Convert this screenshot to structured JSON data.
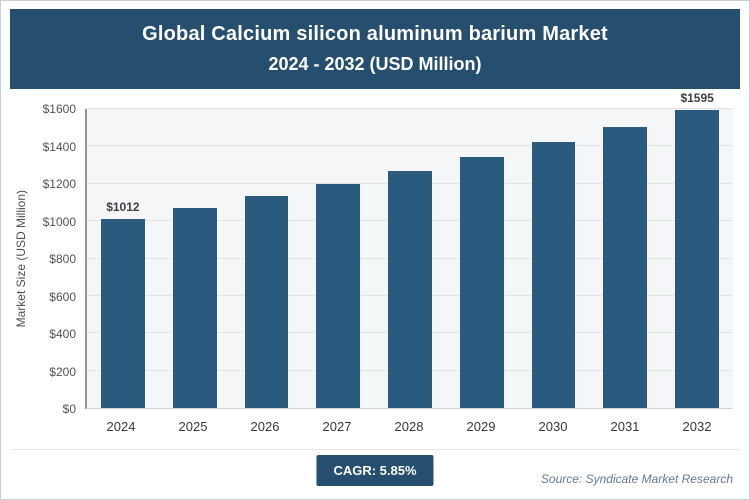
{
  "header": {
    "title_line1": "Global Calcium silicon aluminum barium Market",
    "title_line2": "2024 - 2032 (USD Million)"
  },
  "chart_data": {
    "type": "bar",
    "title": "Global Calcium silicon aluminum barium Market 2024 - 2032 (USD Million)",
    "categories": [
      "2024",
      "2025",
      "2026",
      "2027",
      "2028",
      "2029",
      "2030",
      "2031",
      "2032"
    ],
    "values": [
      1012,
      1071,
      1134,
      1200,
      1270,
      1344,
      1423,
      1506,
      1595
    ],
    "value_labels": [
      "$1012",
      "",
      "",
      "",
      "",
      "",
      "",
      "",
      "$1595"
    ],
    "xlabel": "",
    "ylabel": "Market Size (USD Million)",
    "ylim": [
      0,
      1600
    ],
    "ytick_step": 200,
    "ytick_labels": [
      "$0",
      "$200",
      "$400",
      "$600",
      "$800",
      "$1000",
      "$1200",
      "$1400",
      "$1600"
    ],
    "grid": "horizontal",
    "legend": "none",
    "bar_color": "#2A5A7E",
    "cagr": "5.85%"
  },
  "footer": {
    "cagr_label": "CAGR: 5.85%",
    "source": "Source: Syndicate Market Research"
  },
  "colors": {
    "header_bg": "#254E6F",
    "bar": "#2A5A7E",
    "badge_bg": "#254E6F",
    "plot_bg": "#f5f6f8",
    "gridline": "#e2e4e7"
  }
}
